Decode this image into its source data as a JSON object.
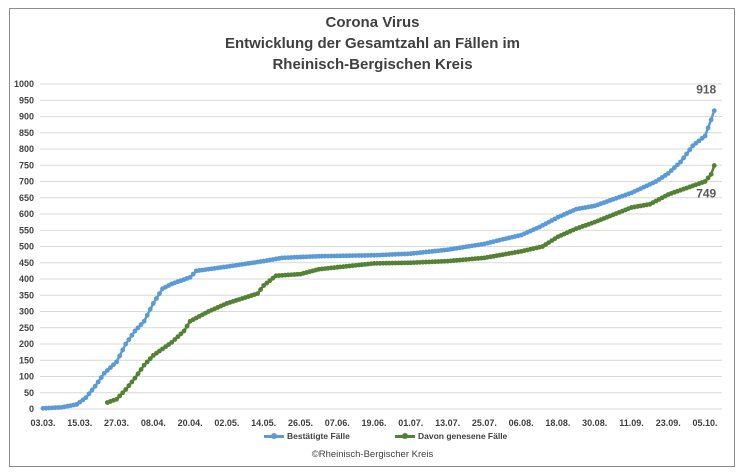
{
  "chart_data": {
    "type": "line",
    "title": [
      "Corona Virus",
      "Entwicklung der Gesamtzahl an Fällen im",
      "Rheinisch-Bergischen Kreis"
    ],
    "xlabel": "",
    "ylabel": "",
    "ylim": [
      0,
      1000
    ],
    "yticks": [
      0,
      50,
      100,
      150,
      200,
      250,
      300,
      350,
      400,
      450,
      500,
      550,
      600,
      650,
      700,
      750,
      800,
      850,
      900,
      950,
      1000
    ],
    "x_start": "03.03.",
    "x_tick_labels": [
      "03.03.",
      "15.03.",
      "27.03.",
      "08.04.",
      "20.04.",
      "02.05.",
      "14.05.",
      "26.05.",
      "07.06.",
      "19.06.",
      "01.07.",
      "13.07.",
      "25.07.",
      "06.08.",
      "18.08.",
      "30.08.",
      "11.09.",
      "23.09.",
      "05.10."
    ],
    "x_tick_step_days": 12,
    "x_max_day": 222,
    "grid": true,
    "legend_position": "bottom",
    "series": [
      {
        "name": "Bestätigte Fälle",
        "color": "#5b9bd5",
        "end_label": "918",
        "points": [
          [
            0,
            2
          ],
          [
            6,
            5
          ],
          [
            11,
            14
          ],
          [
            14,
            35
          ],
          [
            17,
            70
          ],
          [
            20,
            110
          ],
          [
            24,
            145
          ],
          [
            27,
            200
          ],
          [
            30,
            240
          ],
          [
            33,
            270
          ],
          [
            36,
            325
          ],
          [
            39,
            370
          ],
          [
            42,
            385
          ],
          [
            48,
            405
          ],
          [
            50,
            425
          ],
          [
            60,
            438
          ],
          [
            72,
            455
          ],
          [
            78,
            465
          ],
          [
            90,
            470
          ],
          [
            108,
            473
          ],
          [
            120,
            478
          ],
          [
            132,
            490
          ],
          [
            144,
            508
          ],
          [
            150,
            522
          ],
          [
            156,
            535
          ],
          [
            162,
            560
          ],
          [
            168,
            590
          ],
          [
            174,
            615
          ],
          [
            180,
            625
          ],
          [
            192,
            665
          ],
          [
            200,
            700
          ],
          [
            204,
            725
          ],
          [
            208,
            760
          ],
          [
            212,
            810
          ],
          [
            216,
            840
          ],
          [
            218,
            890
          ],
          [
            219,
            918
          ]
        ]
      },
      {
        "name": "Davon genesene Fälle",
        "color": "#548235",
        "end_label": "749",
        "points": [
          [
            21,
            20
          ],
          [
            24,
            30
          ],
          [
            27,
            60
          ],
          [
            30,
            95
          ],
          [
            33,
            135
          ],
          [
            36,
            165
          ],
          [
            39,
            185
          ],
          [
            42,
            205
          ],
          [
            46,
            240
          ],
          [
            48,
            270
          ],
          [
            54,
            300
          ],
          [
            60,
            325
          ],
          [
            70,
            355
          ],
          [
            72,
            380
          ],
          [
            76,
            410
          ],
          [
            84,
            415
          ],
          [
            90,
            430
          ],
          [
            100,
            440
          ],
          [
            108,
            448
          ],
          [
            120,
            450
          ],
          [
            132,
            455
          ],
          [
            144,
            465
          ],
          [
            156,
            485
          ],
          [
            163,
            500
          ],
          [
            168,
            530
          ],
          [
            174,
            555
          ],
          [
            180,
            575
          ],
          [
            192,
            620
          ],
          [
            198,
            630
          ],
          [
            204,
            660
          ],
          [
            210,
            680
          ],
          [
            216,
            700
          ],
          [
            218,
            722
          ],
          [
            219,
            749
          ]
        ]
      }
    ],
    "copyright": "©Rheinisch-Bergischer Kreis"
  }
}
